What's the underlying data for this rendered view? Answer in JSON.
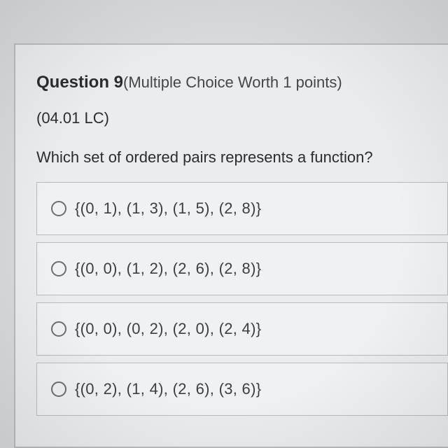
{
  "question": {
    "number_label": "Question 9",
    "meta": "(Multiple Choice Worth 1 points)",
    "code": "(04.01 LC)",
    "prompt": "Which set of ordered pairs represents a function?"
  },
  "options": [
    {
      "text": "{(0, 1), (1, 3), (1, 5), (2, 8)}"
    },
    {
      "text": "{(0, 0), (1, 2), (2, 6), (2, 8)}"
    },
    {
      "text": "{(0, 0), (0, 2), (2, 0), (2, 4)}"
    },
    {
      "text": "{(0, 2), (1, 4), (2, 6), (3, 6)}"
    }
  ],
  "style": {
    "body_bg": "#d8dadc",
    "panel_bg": "#eaecee",
    "panel_border": "#b8bcc0",
    "option_bg": "#f0f1f3",
    "option_border": "#b8bcc0",
    "radio_border": "#6a6e72",
    "text_color": "#2a2c2e",
    "meta_color": "#444648",
    "option_text_color": "#3c3e40",
    "question_number_fontsize": 24,
    "body_fontsize": 22
  }
}
